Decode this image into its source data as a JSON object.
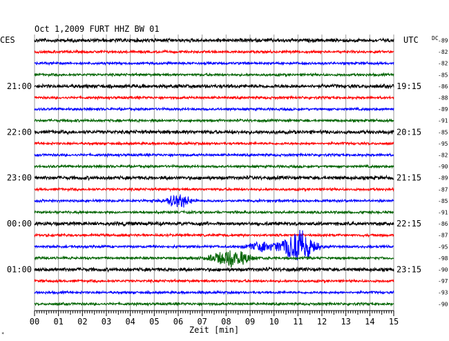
{
  "chart_data": {
    "type": "line",
    "title": "Oct 1,2009   FURT HHZ BW 01",
    "left_tz": "CES",
    "right_tz": "UTC",
    "dc_label": "DC",
    "xlabel": "Zeit [min]",
    "xlim": [
      0,
      15
    ],
    "x_ticks": [
      "00",
      "01",
      "02",
      "03",
      "04",
      "05",
      "06",
      "07",
      "08",
      "09",
      "10",
      "11",
      "12",
      "13",
      "14",
      "15"
    ],
    "left_time_labels": [
      {
        "row": 4,
        "label": "21:00"
      },
      {
        "row": 8,
        "label": "22:00"
      },
      {
        "row": 12,
        "label": "23:00"
      },
      {
        "row": 16,
        "label": "00:00"
      },
      {
        "row": 20,
        "label": "01:00"
      }
    ],
    "right_time_labels": [
      {
        "row": 4,
        "label": "19:15"
      },
      {
        "row": 8,
        "label": "20:15"
      },
      {
        "row": 12,
        "label": "21:15"
      },
      {
        "row": 16,
        "label": "22:15"
      },
      {
        "row": 20,
        "label": "23:15"
      }
    ],
    "row_colors": [
      "#000000",
      "#ff0000",
      "#0000ff",
      "#006400"
    ],
    "dc_values": [
      "-89",
      "-82",
      "-82",
      "-85",
      "-86",
      "-88",
      "-89",
      "-91",
      "-85",
      "-95",
      "-82",
      "-90",
      "-89",
      "-87",
      "-85",
      "-91",
      "-86",
      "-87",
      "-95",
      "-98",
      "-90",
      "-97",
      "-93",
      "-90"
    ],
    "events": [
      {
        "row": 14,
        "center_min": 6.0,
        "width_min": 1.0,
        "amplitude": 9
      },
      {
        "row": 18,
        "center_min": 11.0,
        "width_min": 1.3,
        "amplitude": 24
      },
      {
        "row": 18,
        "center_min": 9.5,
        "width_min": 1.2,
        "amplitude": 6
      },
      {
        "row": 19,
        "center_min": 8.2,
        "width_min": 1.5,
        "amplitude": 12
      }
    ]
  }
}
